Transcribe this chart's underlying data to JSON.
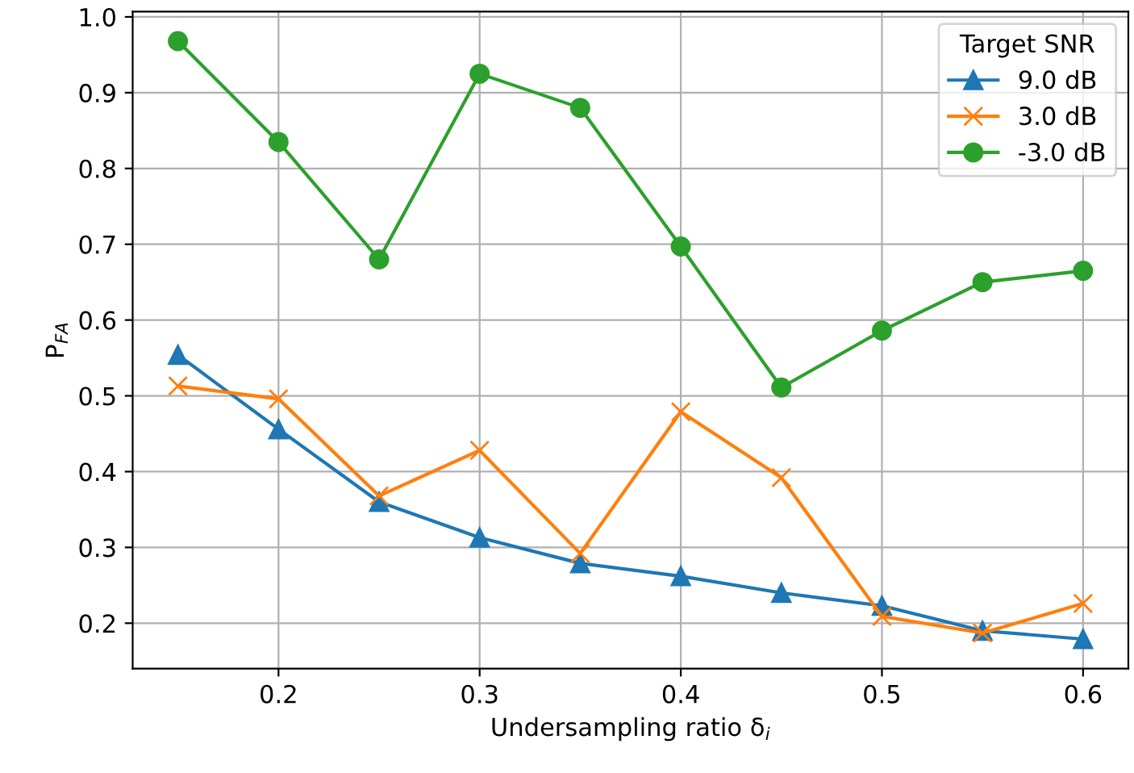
{
  "chart_data": {
    "type": "line",
    "xlabel": "Undersampling ratio δ$_{i}$",
    "ylabel": "P$_{FA}$",
    "legend_title": "Target SNR",
    "legend": "top right",
    "grid": true,
    "x": [
      0.15,
      0.2,
      0.25,
      0.3,
      0.35,
      0.4,
      0.45,
      0.5,
      0.55,
      0.6
    ],
    "xlim": [
      0.1275,
      0.6225
    ],
    "xticks": [
      0.2,
      0.3,
      0.4,
      0.5,
      0.6
    ],
    "ylim": [
      0.14,
      1.007
    ],
    "yticks": [
      0.2,
      0.3,
      0.4,
      0.5,
      0.6,
      0.7,
      0.8,
      0.9,
      {
        "value": 1.0,
        "label": "1.0"
      }
    ],
    "series": [
      {
        "name": "9.0 dB",
        "color": "#1f77b4",
        "marker": "triangle",
        "values": [
          0.554,
          0.456,
          0.36,
          0.313,
          0.279,
          0.262,
          0.24,
          0.223,
          0.19,
          0.179
        ]
      },
      {
        "name": "3.0 dB",
        "color": "#ff7f0e",
        "marker": "cross",
        "values": [
          0.513,
          0.496,
          0.368,
          0.428,
          0.292,
          0.479,
          0.392,
          0.209,
          0.187,
          0.226
        ]
      },
      {
        "name": "-3.0 dB",
        "color": "#2ca02c",
        "marker": "circle",
        "values": [
          0.968,
          0.835,
          0.68,
          0.925,
          0.88,
          0.697,
          0.511,
          0.586,
          0.65,
          0.665
        ]
      }
    ]
  }
}
